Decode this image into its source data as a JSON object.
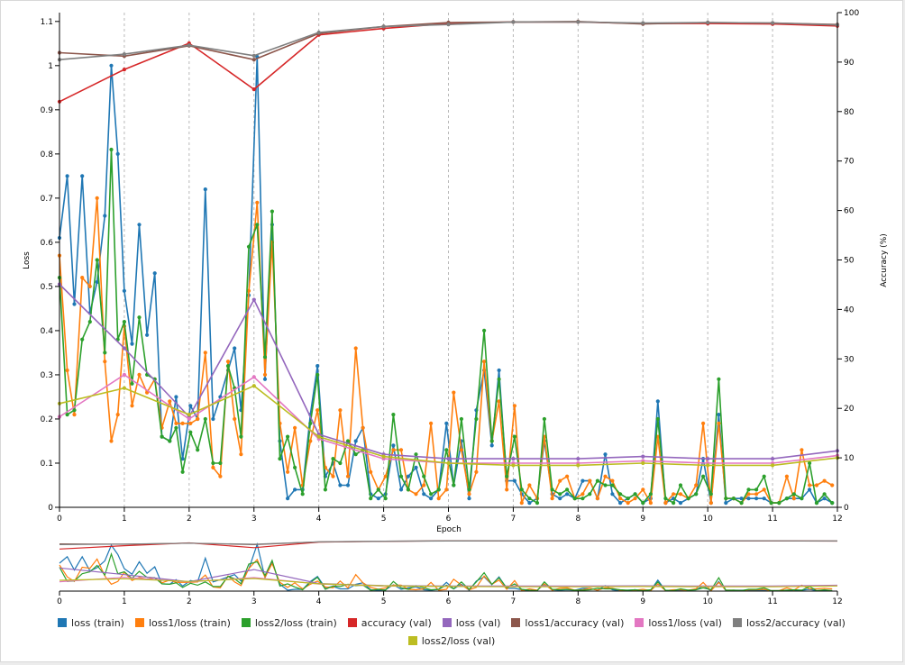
{
  "chart_data": {
    "type": "line",
    "xlabel": "Epoch",
    "ylabel_left": "Loss",
    "ylabel_right": "Accuracy (%)",
    "xlim": [
      0,
      12
    ],
    "ylim_left": [
      0,
      1.12
    ],
    "ylim_right": [
      0,
      100
    ],
    "x_ticks": [
      0,
      1,
      2,
      3,
      4,
      5,
      6,
      7,
      8,
      9,
      10,
      11,
      12
    ],
    "y_ticks_left": [
      0,
      0.1,
      0.2,
      0.3,
      0.4,
      0.5,
      0.6,
      0.7,
      0.8,
      0.9,
      1,
      1.1
    ],
    "y_ticks_right": [
      0,
      10,
      20,
      30,
      40,
      50,
      60,
      70,
      80,
      90,
      100
    ],
    "grid": "vertical dashed lines at each epoch",
    "legend_position": "bottom",
    "series": [
      {
        "name": "loss (train)",
        "color": "#1f77b4",
        "axis": "left",
        "markers": true,
        "x": [
          0,
          0.12,
          0.23,
          0.35,
          0.47,
          0.58,
          0.7,
          0.8,
          0.9,
          1.0,
          1.12,
          1.23,
          1.35,
          1.47,
          1.58,
          1.7,
          1.8,
          1.9,
          2.02,
          2.13,
          2.25,
          2.37,
          2.48,
          2.6,
          2.7,
          2.8,
          2.92,
          3.05,
          3.17,
          3.28,
          3.4,
          3.52,
          3.63,
          3.75,
          3.87,
          3.98,
          4.1,
          4.22,
          4.33,
          4.45,
          4.57,
          4.68,
          4.8,
          4.92,
          5.03,
          5.15,
          5.27,
          5.38,
          5.5,
          5.62,
          5.73,
          5.85,
          5.97,
          6.08,
          6.2,
          6.32,
          6.43,
          6.55,
          6.67,
          6.78,
          6.9,
          7.02,
          7.13,
          7.25,
          7.37,
          7.48,
          7.6,
          7.72,
          7.83,
          7.95,
          8.07,
          8.18,
          8.3,
          8.42,
          8.53,
          8.65,
          8.77,
          8.88,
          9.0,
          9.12,
          9.23,
          9.35,
          9.47,
          9.58,
          9.7,
          9.82,
          9.93,
          10.05,
          10.17,
          10.28,
          10.4,
          10.52,
          10.63,
          10.75,
          10.87,
          10.98,
          11.1,
          11.22,
          11.33,
          11.45,
          11.57,
          11.68,
          11.8,
          11.92
        ],
        "y": [
          0.61,
          0.75,
          0.46,
          0.75,
          0.44,
          0.51,
          0.66,
          1.0,
          0.8,
          0.49,
          0.37,
          0.64,
          0.39,
          0.53,
          0.16,
          0.15,
          0.25,
          0.11,
          0.23,
          0.2,
          0.72,
          0.2,
          0.25,
          0.31,
          0.36,
          0.22,
          0.48,
          1.02,
          0.29,
          0.64,
          0.15,
          0.02,
          0.04,
          0.04,
          0.21,
          0.32,
          0.07,
          0.1,
          0.05,
          0.05,
          0.15,
          0.18,
          0.03,
          0.02,
          0.03,
          0.14,
          0.04,
          0.07,
          0.09,
          0.03,
          0.02,
          0.04,
          0.19,
          0.05,
          0.15,
          0.02,
          0.22,
          0.31,
          0.14,
          0.31,
          0.06,
          0.06,
          0.03,
          0.01,
          0.02,
          0.15,
          0.03,
          0.02,
          0.03,
          0.02,
          0.06,
          0.06,
          0.02,
          0.12,
          0.03,
          0.01,
          0.02,
          0.03,
          0.01,
          0.02,
          0.24,
          0.01,
          0.02,
          0.01,
          0.02,
          0.03,
          0.11,
          0.01,
          0.21,
          0.01,
          0.02,
          0.02,
          0.02,
          0.02,
          0.02,
          0.01,
          0.01,
          0.02,
          0.02,
          0.02,
          0.04,
          0.01,
          0.02,
          0.01
        ]
      },
      {
        "name": "loss1/loss (train)",
        "color": "#ff7f0e",
        "axis": "left",
        "markers": true,
        "x": [
          0,
          0.12,
          0.23,
          0.35,
          0.47,
          0.58,
          0.7,
          0.8,
          0.9,
          1.0,
          1.12,
          1.23,
          1.35,
          1.47,
          1.58,
          1.7,
          1.8,
          1.9,
          2.02,
          2.13,
          2.25,
          2.37,
          2.48,
          2.6,
          2.7,
          2.8,
          2.92,
          3.05,
          3.17,
          3.28,
          3.4,
          3.52,
          3.63,
          3.75,
          3.87,
          3.98,
          4.1,
          4.22,
          4.33,
          4.45,
          4.57,
          4.68,
          4.8,
          4.92,
          5.03,
          5.15,
          5.27,
          5.38,
          5.5,
          5.62,
          5.73,
          5.85,
          5.97,
          6.08,
          6.2,
          6.32,
          6.43,
          6.55,
          6.67,
          6.78,
          6.9,
          7.02,
          7.13,
          7.25,
          7.37,
          7.48,
          7.6,
          7.72,
          7.83,
          7.95,
          8.07,
          8.18,
          8.3,
          8.42,
          8.53,
          8.65,
          8.77,
          8.88,
          9.0,
          9.12,
          9.23,
          9.35,
          9.47,
          9.58,
          9.7,
          9.82,
          9.93,
          10.05,
          10.17,
          10.28,
          10.4,
          10.52,
          10.63,
          10.75,
          10.87,
          10.98,
          11.1,
          11.22,
          11.33,
          11.45,
          11.57,
          11.68,
          11.8,
          11.92
        ],
        "y": [
          0.57,
          0.31,
          0.21,
          0.52,
          0.5,
          0.7,
          0.33,
          0.15,
          0.21,
          0.41,
          0.23,
          0.3,
          0.26,
          0.29,
          0.18,
          0.24,
          0.19,
          0.19,
          0.19,
          0.2,
          0.35,
          0.09,
          0.07,
          0.33,
          0.2,
          0.12,
          0.49,
          0.69,
          0.3,
          0.6,
          0.19,
          0.08,
          0.18,
          0.05,
          0.15,
          0.22,
          0.09,
          0.07,
          0.22,
          0.07,
          0.36,
          0.18,
          0.08,
          0.04,
          0.07,
          0.13,
          0.13,
          0.04,
          0.03,
          0.05,
          0.19,
          0.02,
          0.04,
          0.26,
          0.13,
          0.03,
          0.08,
          0.33,
          0.15,
          0.24,
          0.04,
          0.23,
          0.01,
          0.05,
          0.02,
          0.16,
          0.02,
          0.06,
          0.07,
          0.02,
          0.03,
          0.06,
          0.02,
          0.07,
          0.06,
          0.02,
          0.01,
          0.02,
          0.04,
          0.01,
          0.16,
          0.01,
          0.03,
          0.03,
          0.02,
          0.05,
          0.19,
          0.01,
          0.19,
          0.02,
          0.02,
          0.01,
          0.03,
          0.03,
          0.04,
          0.01,
          0.01,
          0.07,
          0.02,
          0.13,
          0.05,
          0.05,
          0.06,
          0.05
        ]
      },
      {
        "name": "loss2/loss (train)",
        "color": "#2ca02c",
        "axis": "left",
        "markers": true,
        "x": [
          0,
          0.12,
          0.23,
          0.35,
          0.47,
          0.58,
          0.7,
          0.8,
          0.9,
          1.0,
          1.12,
          1.23,
          1.35,
          1.47,
          1.58,
          1.7,
          1.8,
          1.9,
          2.02,
          2.13,
          2.25,
          2.37,
          2.48,
          2.6,
          2.7,
          2.8,
          2.92,
          3.05,
          3.17,
          3.28,
          3.4,
          3.52,
          3.63,
          3.75,
          3.87,
          3.98,
          4.1,
          4.22,
          4.33,
          4.45,
          4.57,
          4.68,
          4.8,
          4.92,
          5.03,
          5.15,
          5.27,
          5.38,
          5.5,
          5.62,
          5.73,
          5.85,
          5.97,
          6.08,
          6.2,
          6.32,
          6.43,
          6.55,
          6.67,
          6.78,
          6.9,
          7.02,
          7.13,
          7.25,
          7.37,
          7.48,
          7.6,
          7.72,
          7.83,
          7.95,
          8.07,
          8.18,
          8.3,
          8.42,
          8.53,
          8.65,
          8.77,
          8.88,
          9.0,
          9.12,
          9.23,
          9.35,
          9.47,
          9.58,
          9.7,
          9.82,
          9.93,
          10.05,
          10.17,
          10.28,
          10.4,
          10.52,
          10.63,
          10.75,
          10.87,
          10.98,
          11.1,
          11.22,
          11.33,
          11.45,
          11.57,
          11.68,
          11.8,
          11.92
        ],
        "y": [
          0.52,
          0.21,
          0.22,
          0.38,
          0.42,
          0.56,
          0.35,
          0.81,
          0.38,
          0.42,
          0.28,
          0.43,
          0.3,
          0.29,
          0.16,
          0.15,
          0.18,
          0.08,
          0.17,
          0.13,
          0.2,
          0.1,
          0.1,
          0.32,
          0.27,
          0.16,
          0.59,
          0.64,
          0.34,
          0.67,
          0.11,
          0.16,
          0.09,
          0.03,
          0.19,
          0.3,
          0.04,
          0.11,
          0.1,
          0.15,
          0.12,
          0.13,
          0.02,
          0.04,
          0.02,
          0.21,
          0.07,
          0.04,
          0.12,
          0.07,
          0.03,
          0.04,
          0.13,
          0.05,
          0.2,
          0.04,
          0.2,
          0.4,
          0.15,
          0.29,
          0.07,
          0.16,
          0.04,
          0.02,
          0.01,
          0.2,
          0.04,
          0.03,
          0.04,
          0.02,
          0.02,
          0.03,
          0.06,
          0.05,
          0.05,
          0.03,
          0.02,
          0.03,
          0.01,
          0.03,
          0.2,
          0.02,
          0.01,
          0.05,
          0.02,
          0.03,
          0.07,
          0.03,
          0.29,
          0.02,
          0.02,
          0.01,
          0.04,
          0.04,
          0.07,
          0.01,
          0.01,
          0.02,
          0.03,
          0.02,
          0.1,
          0.01,
          0.03,
          0.01
        ]
      },
      {
        "name": "accuracy (val)",
        "color": "#d62728",
        "axis": "right",
        "markers": true,
        "x": [
          0,
          1,
          2,
          3,
          4,
          5,
          6,
          7,
          8,
          9,
          10,
          11,
          12
        ],
        "y": [
          82,
          88.5,
          93.8,
          84.5,
          95.5,
          96.8,
          97.8,
          98.1,
          98.1,
          97.8,
          97.8,
          97.7,
          97.3
        ]
      },
      {
        "name": "loss (val)",
        "color": "#9467bd",
        "axis": "left",
        "markers": true,
        "x": [
          0,
          1,
          2,
          3,
          4,
          5,
          6,
          7,
          8,
          9,
          10,
          11,
          12
        ],
        "y": [
          0.505,
          0.36,
          0.205,
          0.47,
          0.165,
          0.12,
          0.11,
          0.11,
          0.11,
          0.115,
          0.11,
          0.11,
          0.128
        ]
      },
      {
        "name": "loss1/accuracy (val)",
        "color": "#8c564b",
        "axis": "right",
        "markers": true,
        "x": [
          0,
          1,
          2,
          3,
          4,
          5,
          6,
          7,
          8,
          9,
          10,
          11,
          12
        ],
        "y": [
          91.9,
          91.2,
          93.3,
          90.5,
          95.8,
          97.2,
          98,
          98.1,
          98.2,
          97.7,
          98,
          97.9,
          97.6
        ]
      },
      {
        "name": "loss1/loss (val)",
        "color": "#e377c2",
        "axis": "left",
        "markers": true,
        "x": [
          0,
          1,
          2,
          3,
          4,
          5,
          6,
          7,
          8,
          9,
          10,
          11,
          12
        ],
        "y": [
          0.205,
          0.3,
          0.2,
          0.295,
          0.155,
          0.11,
          0.1,
          0.1,
          0.1,
          0.105,
          0.1,
          0.1,
          0.117
        ]
      },
      {
        "name": "loss2/accuracy (val)",
        "color": "#7f7f7f",
        "axis": "right",
        "markers": true,
        "x": [
          0,
          1,
          2,
          3,
          4,
          5,
          6,
          7,
          8,
          9,
          10,
          11,
          12
        ],
        "y": [
          90.5,
          91.6,
          93.4,
          91.3,
          96,
          97.2,
          97.6,
          98.1,
          98.1,
          97.9,
          98,
          97.9,
          97.5
        ]
      },
      {
        "name": "loss2/loss (val)",
        "color": "#bcbd22",
        "axis": "left",
        "markers": true,
        "x": [
          0,
          1,
          2,
          3,
          4,
          5,
          6,
          7,
          8,
          9,
          10,
          11,
          12
        ],
        "y": [
          0.235,
          0.27,
          0.21,
          0.275,
          0.16,
          0.115,
          0.1,
          0.095,
          0.095,
          0.1,
          0.095,
          0.095,
          0.112
        ]
      }
    ]
  }
}
